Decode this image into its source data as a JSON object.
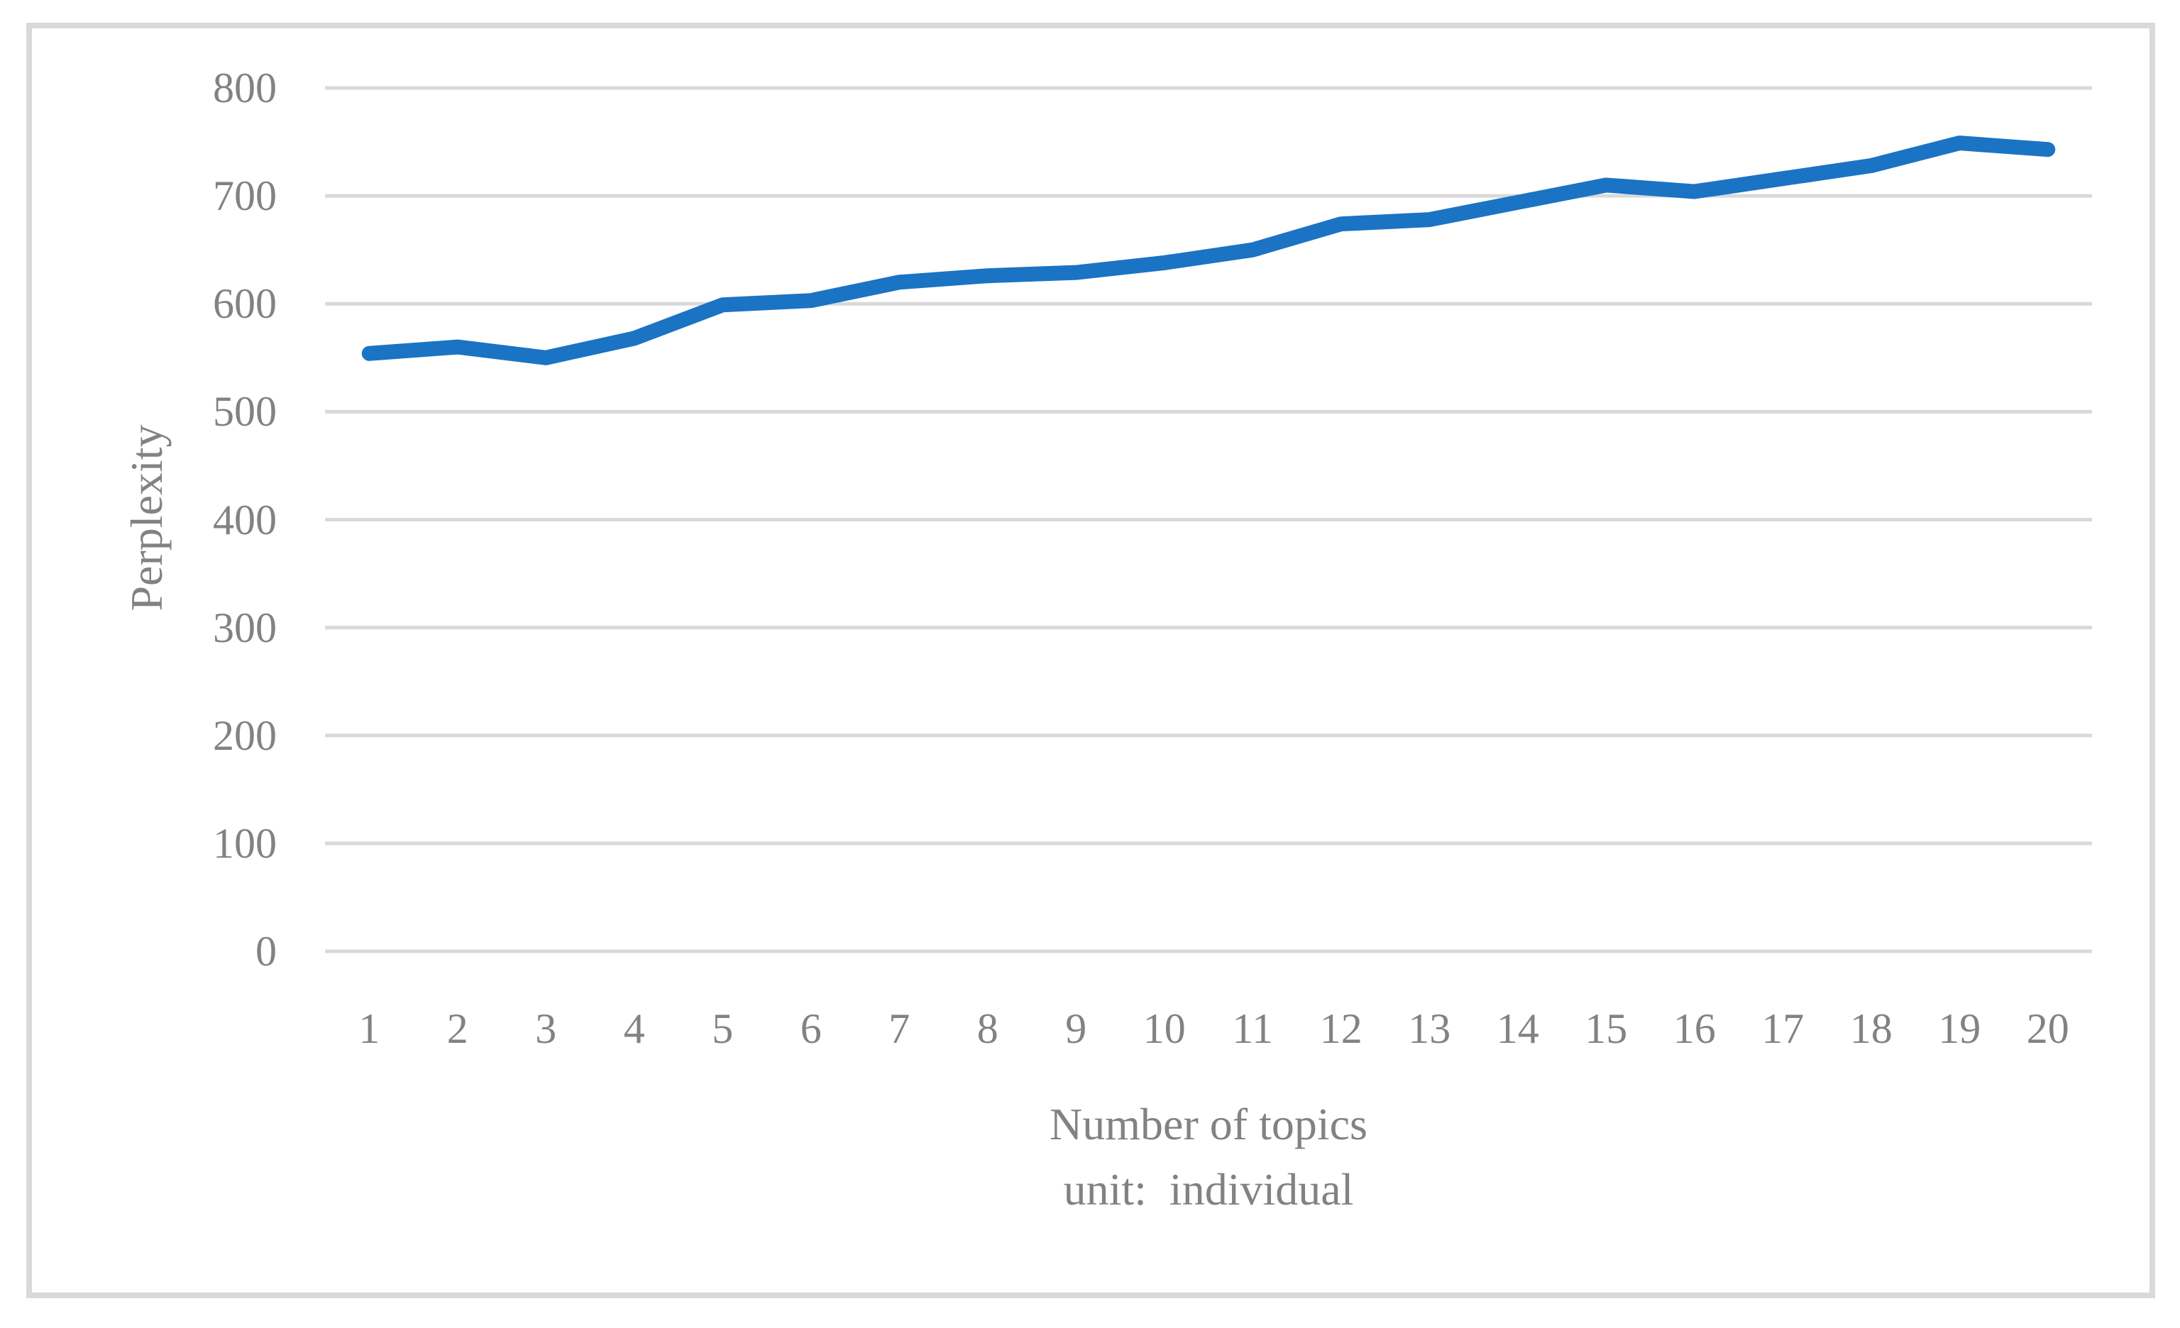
{
  "chart_data": {
    "type": "line",
    "title": "",
    "xlabel": "Number of topics",
    "xlabel_unit": "unit:  individual",
    "ylabel": "Perplexity",
    "categories": [
      "1",
      "2",
      "3",
      "4",
      "5",
      "6",
      "7",
      "8",
      "9",
      "10",
      "11",
      "12",
      "13",
      "14",
      "15",
      "16",
      "17",
      "18",
      "19",
      "20"
    ],
    "series": [
      {
        "name": "Perplexity",
        "values": [
          554,
          560,
          550,
          568,
          599,
          603,
          620,
          626,
          629,
          638,
          650,
          674,
          678,
          694,
          710,
          704,
          716,
          728,
          749,
          743
        ]
      }
    ],
    "ylim": [
      0,
      800
    ],
    "y_ticks": [
      0,
      100,
      200,
      300,
      400,
      500,
      600,
      700,
      800
    ],
    "grid": true,
    "legend": "none",
    "line_color": "#1b73c4",
    "gridline_color": "#d9d9d9",
    "axis_line_color": "#d9d9d9",
    "text_color": "#828282",
    "frame_color": "#d9d9d9"
  }
}
